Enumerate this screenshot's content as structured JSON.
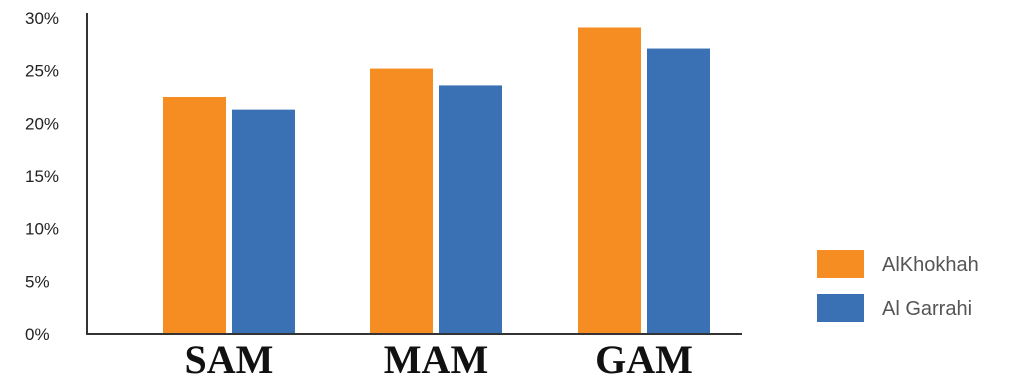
{
  "chart_data": {
    "type": "bar",
    "categories": [
      "SAM",
      "MAM",
      "GAM"
    ],
    "series": [
      {
        "name": "AlKhokhah",
        "values": [
          22.5,
          25.2,
          29.1
        ],
        "color": "#F58D22"
      },
      {
        "name": "Al Garrahi",
        "values": [
          21.3,
          23.6,
          27.1
        ],
        "color": "#3A70B4"
      }
    ],
    "y_ticks": [
      "0%",
      "5%",
      "10%",
      "15%",
      "20%",
      "25%",
      "30%"
    ],
    "ylim": [
      0,
      30
    ],
    "grid": false,
    "legend_position": "right"
  }
}
